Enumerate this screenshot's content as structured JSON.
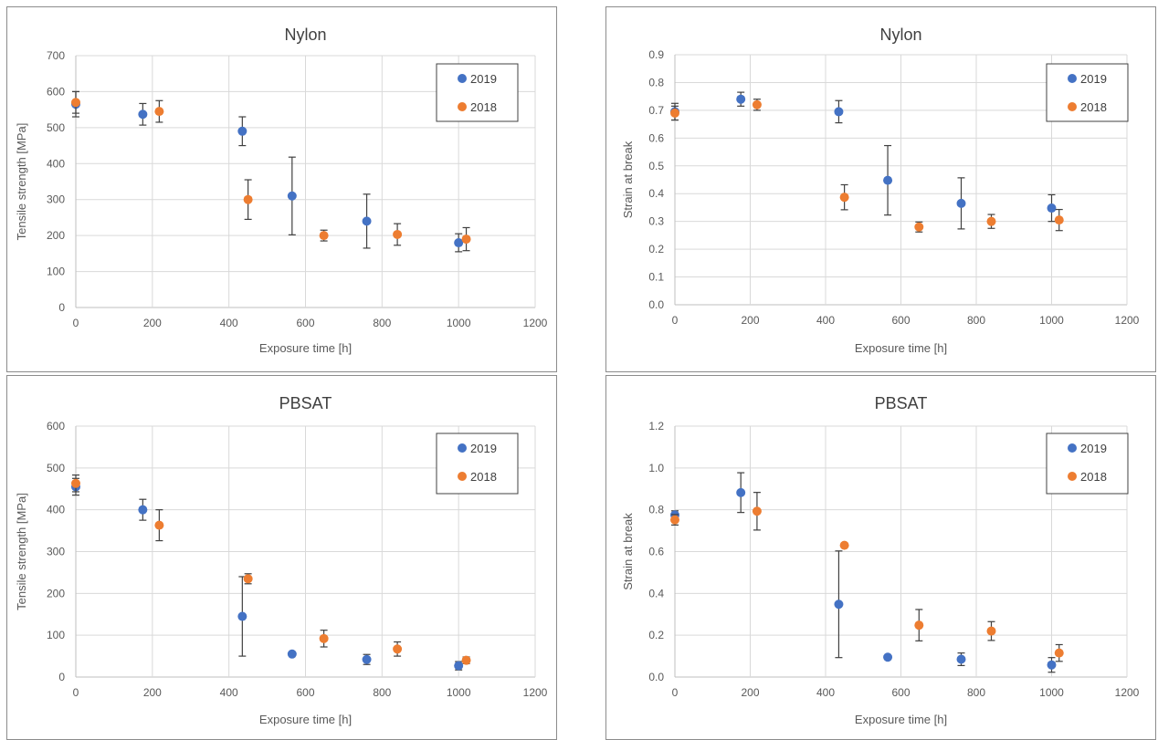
{
  "chart_data": [
    {
      "type": "scatter",
      "title": "Nylon",
      "xlabel": "Exposure time [h]",
      "ylabel": "Tensile strength [MPa]",
      "xlim": [
        0,
        1200
      ],
      "ylim": [
        0,
        700
      ],
      "xticks": [
        "0",
        "200",
        "400",
        "600",
        "800",
        "1000",
        "1200"
      ],
      "yticks": [
        "0",
        "100",
        "200",
        "300",
        "400",
        "500",
        "600",
        "700"
      ],
      "grid": true,
      "legend": "top-right",
      "series": [
        {
          "name": "2019",
          "color": "#4472C4",
          "x": [
            0,
            175,
            435,
            565,
            760,
            1000
          ],
          "y": [
            565,
            537,
            490,
            310,
            240,
            180
          ],
          "err": [
            35,
            30,
            40,
            108,
            75,
            25
          ]
        },
        {
          "name": "2018",
          "color": "#ED7D31",
          "x": [
            0,
            218,
            450,
            648,
            840,
            1020
          ],
          "y": [
            570,
            545,
            300,
            200,
            203,
            190
          ],
          "err": [
            30,
            30,
            55,
            15,
            30,
            32
          ]
        }
      ]
    },
    {
      "type": "scatter",
      "title": "Nylon",
      "xlabel": "Exposure time [h]",
      "ylabel": "Strain at break",
      "xlim": [
        0,
        1200
      ],
      "ylim": [
        0,
        0.9
      ],
      "xticks": [
        "0",
        "200",
        "400",
        "600",
        "800",
        "1000",
        "1200"
      ],
      "yticks": [
        "0.0",
        "0.1",
        "0.2",
        "0.3",
        "0.4",
        "0.5",
        "0.6",
        "0.7",
        "0.8",
        "0.9"
      ],
      "grid": true,
      "legend": "top-right",
      "series": [
        {
          "name": "2019",
          "color": "#4472C4",
          "x": [
            0,
            175,
            435,
            565,
            760,
            1000
          ],
          "y": [
            0.695,
            0.74,
            0.695,
            0.448,
            0.365,
            0.348
          ],
          "err": [
            0.03,
            0.025,
            0.04,
            0.125,
            0.092,
            0.048
          ]
        },
        {
          "name": "2018",
          "color": "#ED7D31",
          "x": [
            0,
            218,
            450,
            648,
            840,
            1020
          ],
          "y": [
            0.69,
            0.72,
            0.387,
            0.28,
            0.3,
            0.305
          ],
          "err": [
            0.025,
            0.02,
            0.045,
            0.018,
            0.025,
            0.038
          ]
        }
      ]
    },
    {
      "type": "scatter",
      "title": "PBSAT",
      "xlabel": "Exposure time [h]",
      "ylabel": "Tensile strength [MPa]",
      "xlim": [
        0,
        1200
      ],
      "ylim": [
        0,
        600
      ],
      "xticks": [
        "0",
        "200",
        "400",
        "600",
        "800",
        "1000",
        "1200"
      ],
      "yticks": [
        "0",
        "100",
        "200",
        "300",
        "400",
        "500",
        "600"
      ],
      "grid": true,
      "legend": "top-right",
      "series": [
        {
          "name": "2019",
          "color": "#4472C4",
          "x": [
            0,
            175,
            435,
            565,
            760,
            1000
          ],
          "y": [
            455,
            400,
            145,
            55,
            42,
            27
          ],
          "err": [
            20,
            25,
            95,
            0,
            12,
            10
          ]
        },
        {
          "name": "2018",
          "color": "#ED7D31",
          "x": [
            0,
            218,
            450,
            648,
            840,
            1020
          ],
          "y": [
            463,
            363,
            235,
            92,
            67,
            40
          ],
          "err": [
            20,
            37,
            12,
            20,
            17,
            8
          ]
        }
      ]
    },
    {
      "type": "scatter",
      "title": "PBSAT",
      "xlabel": "Exposure time [h]",
      "ylabel": "Strain at break",
      "xlim": [
        0,
        1200
      ],
      "ylim": [
        0,
        1.2
      ],
      "xticks": [
        "0",
        "200",
        "400",
        "600",
        "800",
        "1000",
        "1200"
      ],
      "yticks": [
        "0.0",
        "0.2",
        "0.4",
        "0.6",
        "0.8",
        "1.0",
        "1.2"
      ],
      "grid": true,
      "legend": "top-right",
      "series": [
        {
          "name": "2019",
          "color": "#4472C4",
          "x": [
            0,
            175,
            435,
            565,
            760,
            1000
          ],
          "y": [
            0.775,
            0.882,
            0.348,
            0.095,
            0.085,
            0.058
          ],
          "err": [
            0.02,
            0.095,
            0.255,
            0,
            0.03,
            0.035
          ]
        },
        {
          "name": "2018",
          "color": "#ED7D31",
          "x": [
            0,
            218,
            450,
            648,
            840,
            1020
          ],
          "y": [
            0.752,
            0.793,
            0.63,
            0.248,
            0.22,
            0.115
          ],
          "err": [
            0.025,
            0.09,
            0,
            0.075,
            0.045,
            0.04
          ]
        }
      ]
    }
  ]
}
